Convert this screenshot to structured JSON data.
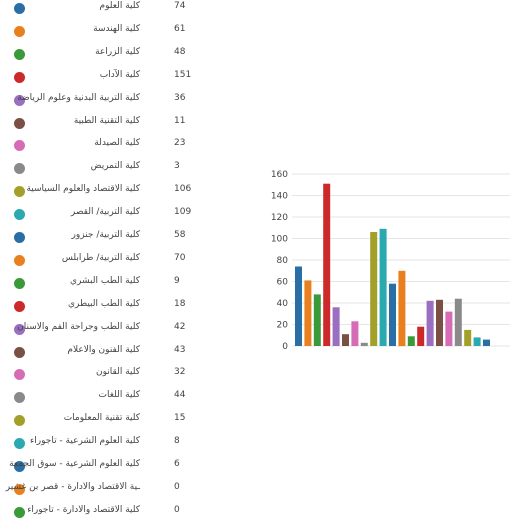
{
  "chart_data": {
    "type": "bar",
    "categories": [
      "كلية العلوم",
      "كلية الهندسة",
      "كلية الزراعة",
      "كلية الآداب",
      "كلية التربية البدنية وعلوم الرياضة",
      "كلية التقنية الطبية",
      "كلية الصيدلة",
      "كلية التمريض",
      "كلية الاقتصاد والعلوم السياسية",
      "كلية التربية/ القصر",
      "كلية التربية/ جنزور",
      "كلية التربية/ طرابلس",
      "كلية الطب البشري",
      "كلية الطب البيطري",
      "كلية الطب وجراحة الفم والاسنان",
      "كلية الفنون والاعلام",
      "كلية القانون",
      "كلية اللغات",
      "كلية تقنية المعلومات",
      "كلية العلوم الشرعية - تاجوراء",
      "كلية العلوم الشرعية - سوق الجمعة",
      "ـية الاقتصاد والادارة - قصر بن غشير",
      "كلية الاقتصاد والادارة - تاجوراء"
    ],
    "values": [
      74,
      61,
      48,
      151,
      36,
      11,
      23,
      3,
      106,
      109,
      58,
      70,
      9,
      18,
      42,
      43,
      32,
      44,
      15,
      8,
      6,
      0,
      0
    ],
    "colors": [
      "#2a6ea6",
      "#e8801f",
      "#3a9a3a",
      "#cc2a2a",
      "#9a6ec0",
      "#7a5044",
      "#d66cb6",
      "#8a8a8a",
      "#a3a02a",
      "#2aaab0",
      "#2a6ea6",
      "#e8801f",
      "#3a9a3a",
      "#cc2a2a",
      "#9a6ec0",
      "#7a5044",
      "#d66cb6",
      "#8a8a8a",
      "#a3a02a",
      "#2aaab0",
      "#2a6ea6",
      "#e8801f",
      "#3a9a3a"
    ],
    "ylim": [
      0,
      160
    ],
    "yticks": [
      "0",
      "20",
      "40",
      "60",
      "80",
      "100",
      "120",
      "140",
      "160"
    ],
    "grid": true,
    "legend_position": "left",
    "title": "",
    "xlabel": "",
    "ylabel": ""
  }
}
